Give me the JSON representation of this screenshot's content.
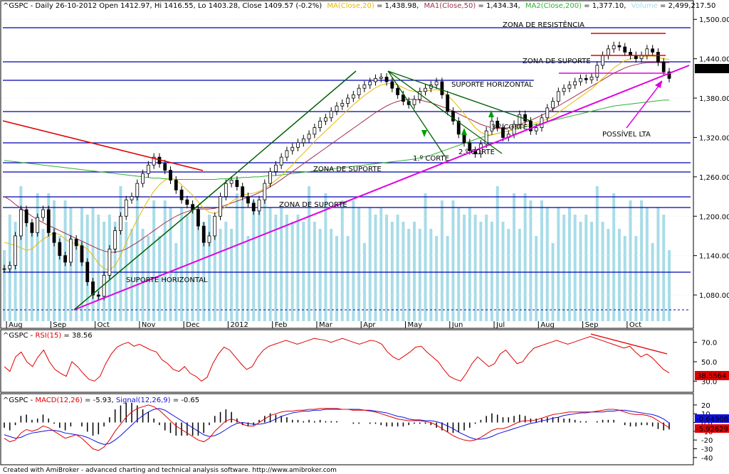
{
  "header": {
    "main": {
      "ticker": "^GSPC - Daily 26-10-2012 Open 1412.97, Hi 1416.55, Lo 1403.28, Close 1409.57 (-0.2%)",
      "ma20_label": "MA(Close,20)",
      "ma20_value": " = 1,438.98,",
      "ma50_label": "MA1(Close,50)",
      "ma50_value": " = 1,434.34,",
      "ma200_label": "MA2(Close,200)",
      "ma200_value": " = 1,377.10,",
      "volume_label": "Volume",
      "volume_value": " = 2,499,217.50"
    },
    "rsi": {
      "ticker": "^GSPC - ",
      "label": "RSI(15)",
      "value": " = 38.56"
    },
    "macd": {
      "ticker": "^GSPC - ",
      "macd_label": "MACD(12,26)",
      "macd_value": " = -5.93, ",
      "signal_label": "Signal(12,26,9)",
      "signal_value": " = -0.65"
    }
  },
  "annotations": {
    "zona_resistencia": "ZONA DE RESISTÊNCIA",
    "zona_suporte_top": "ZONA DE SUPORTE",
    "suporte_horizontal_mid": "SUPORTE HORIZONTAL",
    "corte3": "3.º CORTE",
    "possivel_lta": "POSSÍVEL LTA",
    "corte2": "2.º CORTE",
    "corte1": "1.º CORTE",
    "zona_suporte_mid": "ZONA DE SUPORTE",
    "zona_suporte_low": "ZONA DE SUPORTE",
    "suporte_horizontal_low": "SUPORTE HORIZONTAL"
  },
  "price_box": "1,409.57",
  "rsi_box": "38.5564",
  "macd_box1": "-0.649088",
  "macd_box2": "-5.92629",
  "footer": "Created with AmiBroker - advanced charting and technical analysis software. http://www.amibroker.com",
  "colors": {
    "price": "#000000",
    "ma20": "#e8b800",
    "ma50": "#a0304a",
    "ma200": "#30b030",
    "volume": "#a8dce8",
    "rsi": "#e00000",
    "macd": "#1010e0",
    "signal": "#e00000",
    "support_lines": "#0000b0",
    "lta": "#e000e0",
    "trend_red": "#e00000",
    "trend_green": "#006000"
  },
  "chart_data": [
    {
      "type": "candlestick",
      "title": "^GSPC - Daily",
      "ylim": [
        1040,
        1510
      ],
      "yticks": [
        "1,500.00",
        "1,440.00",
        "1,380.00",
        "1,320.00",
        "1,260.00",
        "1,200.00",
        "1,140.00",
        "1,080.00"
      ],
      "ytick_values": [
        1500,
        1440,
        1380,
        1320,
        1260,
        1200,
        1140,
        1080
      ],
      "x_labels": [
        "Aug",
        "Sep",
        "Oct",
        "Nov",
        "Dec",
        "2012",
        "Feb",
        "Mar",
        "Apr",
        "May",
        "Jun",
        "Jul",
        "Aug",
        "Sep",
        "Oct"
      ],
      "close": [
        1120,
        1125,
        1170,
        1210,
        1190,
        1175,
        1198,
        1210,
        1175,
        1160,
        1140,
        1130,
        1165,
        1155,
        1130,
        1100,
        1080,
        1078,
        1110,
        1150,
        1178,
        1200,
        1225,
        1230,
        1250,
        1265,
        1278,
        1290,
        1280,
        1270,
        1255,
        1240,
        1225,
        1218,
        1210,
        1185,
        1160,
        1170,
        1200,
        1230,
        1250,
        1255,
        1245,
        1230,
        1220,
        1208,
        1225,
        1250,
        1268,
        1278,
        1290,
        1300,
        1305,
        1312,
        1318,
        1325,
        1335,
        1345,
        1350,
        1360,
        1368,
        1372,
        1380,
        1385,
        1395,
        1400,
        1405,
        1410,
        1412,
        1405,
        1395,
        1385,
        1375,
        1370,
        1378,
        1390,
        1395,
        1400,
        1405,
        1385,
        1360,
        1345,
        1325,
        1312,
        1300,
        1295,
        1310,
        1330,
        1345,
        1335,
        1320,
        1325,
        1340,
        1355,
        1345,
        1330,
        1335,
        1350,
        1365,
        1375,
        1390,
        1395,
        1400,
        1405,
        1410,
        1408,
        1412,
        1430,
        1445,
        1455,
        1460,
        1458,
        1450,
        1445,
        1440,
        1445,
        1455,
        1450,
        1435,
        1420,
        1410
      ],
      "ma20": [
        1160,
        1158,
        1155,
        1152,
        1148,
        1150,
        1158,
        1165,
        1170,
        1175,
        1172,
        1165,
        1160,
        1158,
        1155,
        1150,
        1140,
        1128,
        1120,
        1118,
        1125,
        1140,
        1160,
        1178,
        1195,
        1210,
        1225,
        1238,
        1248,
        1255,
        1258,
        1255,
        1248,
        1240,
        1232,
        1222,
        1212,
        1206,
        1204,
        1208,
        1215,
        1222,
        1228,
        1232,
        1234,
        1235,
        1238,
        1242,
        1248,
        1255,
        1262,
        1270,
        1278,
        1288,
        1296,
        1305,
        1314,
        1322,
        1330,
        1338,
        1346,
        1354,
        1362,
        1370,
        1377,
        1384,
        1390,
        1396,
        1400,
        1402,
        1402,
        1400,
        1396,
        1392,
        1390,
        1390,
        1391,
        1392,
        1393,
        1390,
        1384,
        1376,
        1366,
        1356,
        1345,
        1335,
        1328,
        1324,
        1324,
        1326,
        1328,
        1330,
        1333,
        1336,
        1339,
        1341,
        1343,
        1345,
        1348,
        1352,
        1358,
        1364,
        1370,
        1376,
        1382,
        1388,
        1394,
        1402,
        1410,
        1418,
        1426,
        1432,
        1437,
        1440,
        1442,
        1443,
        1444,
        1444,
        1442,
        1440,
        1439
      ],
      "ma50": [
        1230,
        1225,
        1218,
        1212,
        1206,
        1200,
        1195,
        1190,
        1186,
        1182,
        1178,
        1174,
        1170,
        1166,
        1162,
        1158,
        1154,
        1150,
        1147,
        1145,
        1145,
        1147,
        1150,
        1155,
        1160,
        1166,
        1172,
        1178,
        1184,
        1190,
        1195,
        1200,
        1204,
        1207,
        1210,
        1211,
        1211,
        1211,
        1212,
        1214,
        1217,
        1220,
        1223,
        1226,
        1229,
        1232,
        1236,
        1240,
        1245,
        1250,
        1256,
        1262,
        1268,
        1274,
        1280,
        1286,
        1292,
        1298,
        1304,
        1310,
        1316,
        1322,
        1328,
        1334,
        1340,
        1346,
        1352,
        1358,
        1363,
        1368,
        1372,
        1375,
        1377,
        1378,
        1378,
        1377,
        1375,
        1373,
        1370,
        1367,
        1364,
        1360,
        1356,
        1352,
        1348,
        1344,
        1340,
        1337,
        1335,
        1334,
        1334,
        1335,
        1337,
        1340,
        1343,
        1346,
        1350,
        1354,
        1358,
        1363,
        1368,
        1373,
        1378,
        1383,
        1388,
        1393,
        1398,
        1403,
        1408,
        1413,
        1418,
        1422,
        1426,
        1429,
        1431,
        1433,
        1434,
        1434,
        1434,
        1434,
        1434
      ],
      "ma200": [
        1285,
        1284,
        1283,
        1282,
        1281,
        1280,
        1279,
        1278,
        1277,
        1276,
        1275,
        1274,
        1273,
        1272,
        1271,
        1270,
        1269,
        1268,
        1267,
        1266,
        1265,
        1264,
        1263,
        1262,
        1261,
        1260,
        1259,
        1258,
        1258,
        1257,
        1257,
        1256,
        1256,
        1256,
        1256,
        1256,
        1256,
        1256,
        1256,
        1257,
        1257,
        1258,
        1258,
        1259,
        1259,
        1260,
        1260,
        1261,
        1262,
        1262,
        1263,
        1264,
        1265,
        1266,
        1267,
        1268,
        1269,
        1270,
        1271,
        1272,
        1273,
        1274,
        1275,
        1276,
        1277,
        1278,
        1279,
        1280,
        1281,
        1282,
        1283,
        1284,
        1285,
        1286,
        1287,
        1289,
        1291,
        1293,
        1296,
        1299,
        1302,
        1305,
        1308,
        1311,
        1314,
        1317,
        1320,
        1322,
        1324,
        1326,
        1328,
        1330,
        1332,
        1334,
        1336,
        1338,
        1340,
        1342,
        1344,
        1346,
        1348,
        1350,
        1352,
        1354,
        1356,
        1358,
        1360,
        1362,
        1364,
        1366,
        1368,
        1369,
        1370,
        1371,
        1372,
        1373,
        1374,
        1375,
        1376,
        1377,
        1377
      ]
    },
    {
      "type": "line",
      "title": "RSI(15)",
      "ylim": [
        20,
        80
      ],
      "yticks": [
        "70.0",
        "50.0",
        "30.0"
      ],
      "ytick_values": [
        70,
        50,
        30
      ],
      "values": [
        45,
        40,
        55,
        60,
        50,
        45,
        55,
        62,
        50,
        42,
        38,
        35,
        50,
        45,
        38,
        32,
        30,
        35,
        48,
        58,
        65,
        68,
        70,
        66,
        68,
        65,
        62,
        60,
        52,
        48,
        42,
        40,
        45,
        38,
        35,
        30,
        34,
        48,
        58,
        65,
        62,
        55,
        48,
        42,
        45,
        55,
        62,
        66,
        68,
        70,
        72,
        70,
        68,
        70,
        72,
        74,
        73,
        72,
        70,
        72,
        74,
        72,
        70,
        68,
        70,
        72,
        71,
        68,
        60,
        55,
        52,
        56,
        60,
        65,
        66,
        60,
        55,
        50,
        42,
        35,
        32,
        30,
        38,
        48,
        55,
        50,
        45,
        48,
        58,
        62,
        55,
        48,
        50,
        58,
        64,
        66,
        68,
        70,
        72,
        70,
        68,
        70,
        72,
        74,
        76,
        74,
        72,
        70,
        68,
        66,
        64,
        66,
        60,
        55,
        58,
        54,
        48,
        42,
        38.56
      ]
    },
    {
      "type": "line",
      "title": "MACD(12,26) / Signal(12,26,9)",
      "ylim": [
        -45,
        28
      ],
      "yticks": [
        "20",
        "10",
        "0.0",
        "-10",
        "-20",
        "-30",
        "-40"
      ],
      "ytick_values": [
        20,
        10,
        0,
        -10,
        -20,
        -30,
        -40
      ],
      "series": [
        {
          "name": "MACD(12,26)",
          "values": [
            -18,
            -22,
            -20,
            -12,
            -8,
            -10,
            -8,
            -4,
            -6,
            -10,
            -14,
            -18,
            -16,
            -14,
            -18,
            -24,
            -30,
            -32,
            -28,
            -20,
            -10,
            -2,
            6,
            12,
            16,
            18,
            20,
            18,
            14,
            8,
            2,
            -4,
            -8,
            -12,
            -16,
            -20,
            -22,
            -18,
            -10,
            -4,
            2,
            4,
            2,
            -2,
            -4,
            -4,
            0,
            4,
            8,
            10,
            12,
            13,
            13,
            14,
            14,
            15,
            15,
            16,
            16,
            16,
            16,
            15,
            15,
            14,
            14,
            14,
            13,
            12,
            10,
            8,
            6,
            4,
            3,
            2,
            2,
            2,
            1,
            0,
            -3,
            -7,
            -11,
            -15,
            -18,
            -20,
            -21,
            -20,
            -17,
            -13,
            -9,
            -7,
            -7,
            -5,
            -2,
            1,
            2,
            2,
            3,
            5,
            7,
            9,
            10,
            11,
            12,
            12,
            12,
            12,
            12,
            13,
            14,
            15,
            15,
            14,
            12,
            10,
            9,
            9,
            8,
            6,
            2,
            -2,
            -5.93
          ]
        },
        {
          "name": "Signal(12,26,9)",
          "values": [
            -14,
            -16,
            -18,
            -17,
            -14,
            -12,
            -11,
            -10,
            -9,
            -9,
            -10,
            -12,
            -13,
            -14,
            -15,
            -17,
            -20,
            -23,
            -25,
            -24,
            -20,
            -15,
            -9,
            -3,
            3,
            8,
            12,
            15,
            16,
            14,
            10,
            6,
            2,
            -2,
            -6,
            -10,
            -14,
            -16,
            -15,
            -12,
            -8,
            -4,
            -1,
            0,
            -1,
            -2,
            -2,
            -1,
            1,
            4,
            7,
            9,
            11,
            12,
            13,
            13,
            14,
            14,
            15,
            15,
            15,
            15,
            15,
            15,
            15,
            14,
            14,
            13,
            12,
            11,
            9,
            7,
            6,
            4,
            3,
            3,
            2,
            2,
            1,
            -1,
            -4,
            -7,
            -11,
            -14,
            -17,
            -19,
            -19,
            -18,
            -16,
            -13,
            -11,
            -9,
            -7,
            -5,
            -3,
            -1,
            0,
            2,
            3,
            5,
            6,
            8,
            9,
            10,
            11,
            11,
            12,
            12,
            12,
            13,
            13,
            14,
            14,
            13,
            12,
            11,
            10,
            9,
            7,
            4,
            -0.65
          ]
        }
      ]
    }
  ]
}
